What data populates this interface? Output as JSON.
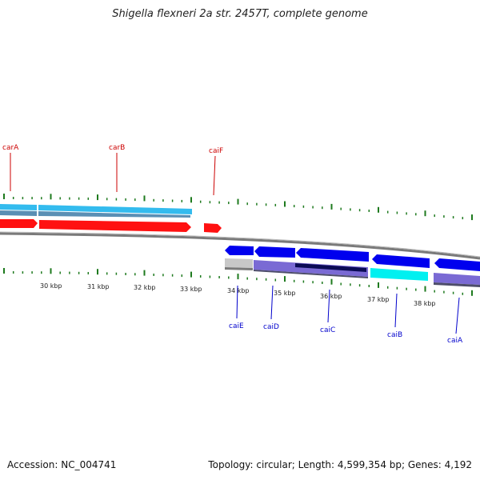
{
  "title": "Shigella flexneri 2a str. 2457T, complete genome",
  "footer": {
    "accession": "Accession: NC_004741",
    "summary": "Topology: circular; Length: 4,599,354 bp; Genes: 4,192"
  },
  "colors": {
    "forward_label": "#cc0000",
    "reverse_label": "#0000cc",
    "tick": "#1e7a1e",
    "backbone": "#7a7a7a"
  },
  "tick_labels": [
    "30 kbp",
    "31 kbp",
    "32 kbp",
    "33 kbp",
    "34 kbp",
    "35 kbp",
    "36 kbp",
    "37 kbp",
    "38 kbp"
  ],
  "genes_forward": [
    {
      "name": "carA",
      "color": "#ff1111"
    },
    {
      "name": "carB",
      "color": "#ff1111"
    },
    {
      "name": "caiF",
      "color": "#ff1111"
    }
  ],
  "genes_reverse": [
    {
      "name": "caiE",
      "color": "#0000ee"
    },
    {
      "name": "caiD",
      "color": "#0000ee"
    },
    {
      "name": "caiC",
      "color": "#0000ee"
    },
    {
      "name": "caiB",
      "color": "#0000ee"
    },
    {
      "name": "caiA",
      "color": "#0000ee"
    }
  ]
}
